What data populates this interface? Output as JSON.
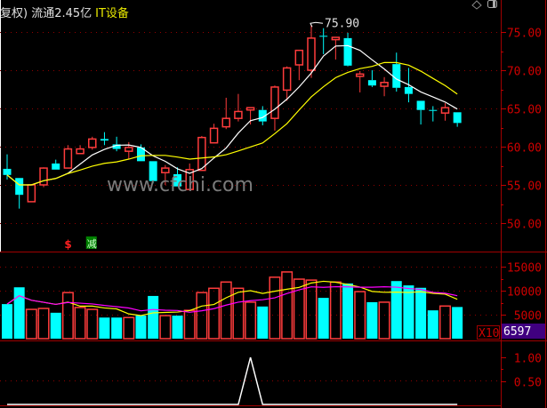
{
  "header": {
    "title": "复权) 流通2.45亿",
    "industry": "IT设备"
  },
  "watermark": "www.cfchi.com",
  "icons": [
    "diamond-icon",
    "window-icon"
  ],
  "colors": {
    "up": "#ff3c3c",
    "down": "#00ffff",
    "ma_short": "#ffffff",
    "ma_long": "#ffff00",
    "vol_ma_short": "#ffff00",
    "vol_ma_long": "#ff00ff",
    "axis": "#d00000",
    "volume_badge": "#400080"
  },
  "signals": [
    {
      "label": "$",
      "color": "#ff2020",
      "at_index": 5
    },
    {
      "label": "减",
      "color": "#00a000",
      "at_index": 7
    }
  ],
  "chart_data": [
    {
      "type": "candlestick",
      "panel": "price",
      "ylim": [
        47,
        79
      ],
      "yticks": [
        "75.00",
        "70.00",
        "65.00",
        "60.00",
        "55.00",
        "50.00"
      ],
      "ytick_values": [
        75,
        70,
        65,
        60,
        55,
        50
      ],
      "grid": true,
      "annotation": {
        "label": "75.90",
        "value": 75.9,
        "at_index": 25
      },
      "ohlc": [
        [
          57.1,
          59.0,
          55.7,
          56.3
        ],
        [
          55.9,
          55.9,
          51.9,
          53.7
        ],
        [
          52.8,
          55.0,
          52.8,
          55.0
        ],
        [
          55.0,
          57.3,
          54.7,
          57.2
        ],
        [
          57.8,
          58.3,
          57.0,
          57.0
        ],
        [
          57.2,
          60.2,
          57.2,
          59.7
        ],
        [
          59.1,
          60.2,
          59.1,
          59.7
        ],
        [
          59.9,
          61.3,
          59.6,
          61.0
        ],
        [
          61.0,
          61.9,
          60.2,
          60.8
        ],
        [
          60.3,
          61.3,
          59.4,
          59.7
        ],
        [
          59.4,
          60.6,
          58.4,
          59.9
        ],
        [
          59.9,
          60.3,
          58.1,
          58.1
        ],
        [
          58.1,
          58.1,
          55.2,
          55.5
        ],
        [
          56.6,
          57.6,
          55.0,
          57.2
        ],
        [
          56.4,
          57.3,
          54.8,
          54.8
        ],
        [
          54.4,
          57.8,
          54.4,
          57.0
        ],
        [
          56.9,
          61.4,
          56.9,
          61.2
        ],
        [
          60.5,
          63.0,
          60.5,
          62.4
        ],
        [
          62.6,
          66.4,
          62.3,
          63.7
        ],
        [
          63.7,
          66.9,
          63.3,
          64.6
        ],
        [
          64.8,
          65.1,
          62.9,
          65.1
        ],
        [
          64.8,
          65.3,
          62.8,
          63.3
        ],
        [
          63.7,
          68.0,
          62.1,
          67.8
        ],
        [
          67.4,
          70.5,
          66.0,
          70.3
        ],
        [
          70.7,
          72.6,
          68.7,
          72.6
        ],
        [
          70.0,
          75.9,
          69.0,
          74.2
        ],
        [
          74.5,
          75.5,
          72.1,
          74.4
        ],
        [
          74.0,
          74.3,
          71.4,
          74.3
        ],
        [
          74.2,
          74.9,
          70.5,
          70.6
        ],
        [
          69.2,
          69.9,
          67.1,
          69.5
        ],
        [
          68.7,
          70.0,
          67.8,
          68.0
        ],
        [
          67.9,
          69.1,
          66.6,
          68.4
        ],
        [
          70.8,
          72.3,
          67.2,
          67.7
        ],
        [
          67.8,
          70.3,
          65.8,
          66.9
        ],
        [
          66.0,
          66.0,
          62.9,
          64.8
        ],
        [
          64.8,
          65.3,
          63.3,
          64.7
        ],
        [
          64.4,
          65.7,
          63.4,
          65.1
        ],
        [
          64.5,
          64.5,
          62.6,
          63.1
        ]
      ]
    },
    {
      "type": "bar",
      "panel": "volume",
      "ylim": [
        0,
        18500
      ],
      "yticks": [
        "15000",
        "10000",
        "5000"
      ],
      "ytick_values": [
        15000,
        10000,
        5000
      ],
      "unit_label": "X10",
      "current_value": "6597",
      "values": [
        7200,
        10700,
        6100,
        6300,
        5400,
        9600,
        6500,
        6100,
        4400,
        4400,
        4400,
        4800,
        8900,
        4800,
        4800,
        5900,
        9600,
        10500,
        11800,
        10500,
        7600,
        6700,
        12800,
        13900,
        12400,
        12200,
        8500,
        11800,
        11500,
        9800,
        7600,
        7600,
        12000,
        11100,
        10600,
        5900,
        6800,
        6597
      ]
    },
    {
      "type": "line",
      "panel": "indicator",
      "ylim": [
        0,
        1.4
      ],
      "yticks": [
        "1.00",
        "0.50"
      ],
      "ytick_values": [
        1,
        0.5
      ],
      "values": [
        0,
        0,
        0,
        0,
        0,
        0,
        0,
        0,
        0,
        0,
        0,
        0,
        0,
        0,
        0,
        0,
        0,
        0,
        0,
        0,
        1,
        0,
        0,
        0,
        0,
        0,
        0,
        0,
        0,
        0,
        0,
        0,
        0,
        0,
        0,
        0,
        0,
        0
      ]
    }
  ]
}
